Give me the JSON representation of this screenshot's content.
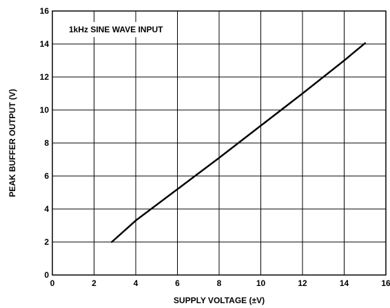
{
  "chart_data": {
    "type": "line",
    "title": "",
    "annotation": "1kHz SINE WAVE INPUT",
    "xlabel": "SUPPLY VOLTAGE (±V)",
    "ylabel": "PEAK BUFFER OUTPUT (V)",
    "xlim": [
      0,
      16
    ],
    "ylim": [
      0,
      16
    ],
    "xticks": [
      "0",
      "2",
      "4",
      "6",
      "8",
      "10",
      "12",
      "14",
      "16"
    ],
    "yticks": [
      "0",
      "2",
      "4",
      "6",
      "8",
      "10",
      "12",
      "14",
      "16"
    ],
    "grid": true,
    "series": [
      {
        "x": [
          2.85,
          4.0,
          6.0,
          8.0,
          10.0,
          12.0,
          14.0,
          15.0
        ],
        "y": [
          2.0,
          3.3,
          5.2,
          7.1,
          9.05,
          11.0,
          13.0,
          14.05
        ],
        "color": "#000000"
      }
    ]
  }
}
